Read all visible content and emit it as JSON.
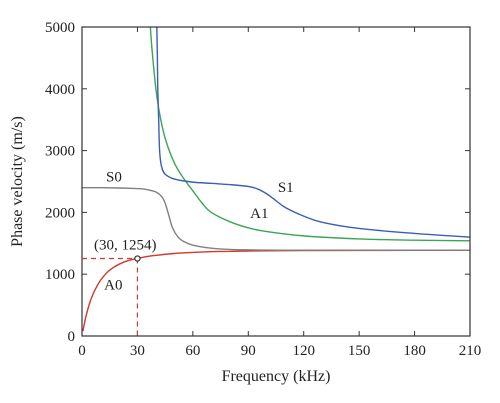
{
  "chart_data": {
    "type": "line",
    "xlabel": "Frequency (kHz)",
    "ylabel": "Phase velocity (m/s)",
    "xlim": [
      0,
      210
    ],
    "ylim": [
      0,
      5000
    ],
    "xticks": [
      0,
      30,
      60,
      90,
      120,
      150,
      180,
      210
    ],
    "yticks": [
      0,
      1000,
      2000,
      3000,
      4000,
      5000
    ],
    "grid": false,
    "series": [
      {
        "name": "A0",
        "color": "#d0392b",
        "x": [
          0.5,
          2,
          4,
          6,
          8,
          10,
          13,
          16,
          20,
          25,
          30,
          35,
          40,
          50,
          60,
          75,
          90,
          120,
          150,
          180,
          210
        ],
        "y": [
          80,
          300,
          520,
          680,
          800,
          900,
          1010,
          1090,
          1160,
          1220,
          1254,
          1285,
          1305,
          1335,
          1352,
          1368,
          1375,
          1382,
          1385,
          1386,
          1387
        ]
      },
      {
        "name": "S0",
        "color": "#808080",
        "x": [
          0,
          10,
          20,
          30,
          35,
          40,
          43,
          45,
          47,
          49,
          52,
          55,
          60,
          70,
          80,
          100,
          120,
          150,
          180,
          210
        ],
        "y": [
          2400,
          2400,
          2395,
          2385,
          2370,
          2330,
          2260,
          2150,
          1950,
          1750,
          1600,
          1530,
          1470,
          1420,
          1400,
          1390,
          1388,
          1388,
          1388,
          1388
        ]
      },
      {
        "name": "A1",
        "color": "#3aa655",
        "x": [
          37,
          38,
          40,
          42,
          45,
          50,
          55,
          60,
          65,
          70,
          80,
          90,
          100,
          120,
          150,
          180,
          210
        ],
        "y": [
          5000,
          4600,
          4000,
          3600,
          3200,
          2800,
          2550,
          2350,
          2150,
          2000,
          1850,
          1750,
          1690,
          1620,
          1570,
          1550,
          1540
        ]
      },
      {
        "name": "S1",
        "color": "#3b5fb7",
        "x": [
          40.5,
          40.8,
          41,
          41.5,
          42,
          43,
          45,
          50,
          60,
          70,
          80,
          90,
          95,
          100,
          105,
          110,
          120,
          130,
          150,
          180,
          210
        ],
        "y": [
          5000,
          4500,
          4000,
          3500,
          3000,
          2750,
          2620,
          2540,
          2490,
          2470,
          2450,
          2420,
          2380,
          2300,
          2190,
          2080,
          1940,
          1840,
          1740,
          1660,
          1600
        ]
      }
    ],
    "annotations": [
      {
        "text": "(30, 1254)",
        "x": 30,
        "y": 1254
      }
    ],
    "labels": [
      {
        "text": "S0",
        "x": 13,
        "y": 2500
      },
      {
        "text": "S1",
        "x": 106,
        "y": 2330
      },
      {
        "text": "A1",
        "x": 91,
        "y": 1910
      },
      {
        "text": "A0",
        "x": 12,
        "y": 750
      }
    ]
  }
}
